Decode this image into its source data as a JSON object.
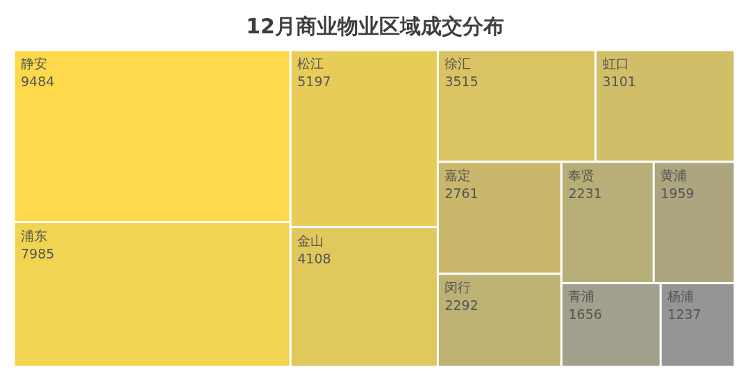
{
  "chart_data": {
    "type": "other",
    "title": "12月商业物业区域成交分布",
    "categories": [
      "静安",
      "浦东",
      "松江",
      "金山",
      "徐汇",
      "虹口",
      "嘉定",
      "闵行",
      "奉贤",
      "黄浦",
      "青浦",
      "杨浦"
    ],
    "values": [
      9484,
      7985,
      5197,
      4108,
      3515,
      3101,
      2761,
      2292,
      2231,
      1959,
      1656,
      1237
    ],
    "colors": [
      "#fdd94b",
      "#f1d451",
      "#e7cd58",
      "#e1c85d",
      "#d9c362",
      "#d1be68",
      "#c9b86c",
      "#bdb173",
      "#b8ae78",
      "#aca57f",
      "#a1a08c",
      "#959594"
    ],
    "data_labels": true
  }
}
